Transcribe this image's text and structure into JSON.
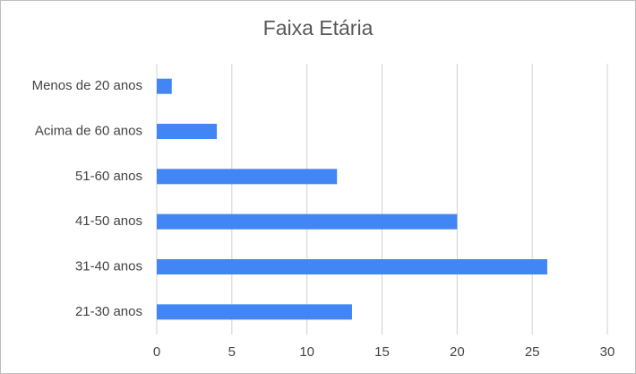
{
  "chart_data": {
    "type": "hbar",
    "title": "Faixa Etária",
    "categories": [
      "Menos de 20 anos",
      "Acima de 60 anos",
      "51-60 anos",
      "41-50 anos",
      "31-40 anos",
      "21-30 anos"
    ],
    "values": [
      1,
      4,
      12,
      20,
      26,
      13
    ],
    "color": "#4285f4",
    "xlim": [
      0,
      30
    ],
    "xticks": [
      0,
      5,
      10,
      15,
      20,
      25,
      30
    ],
    "grid": true
  }
}
